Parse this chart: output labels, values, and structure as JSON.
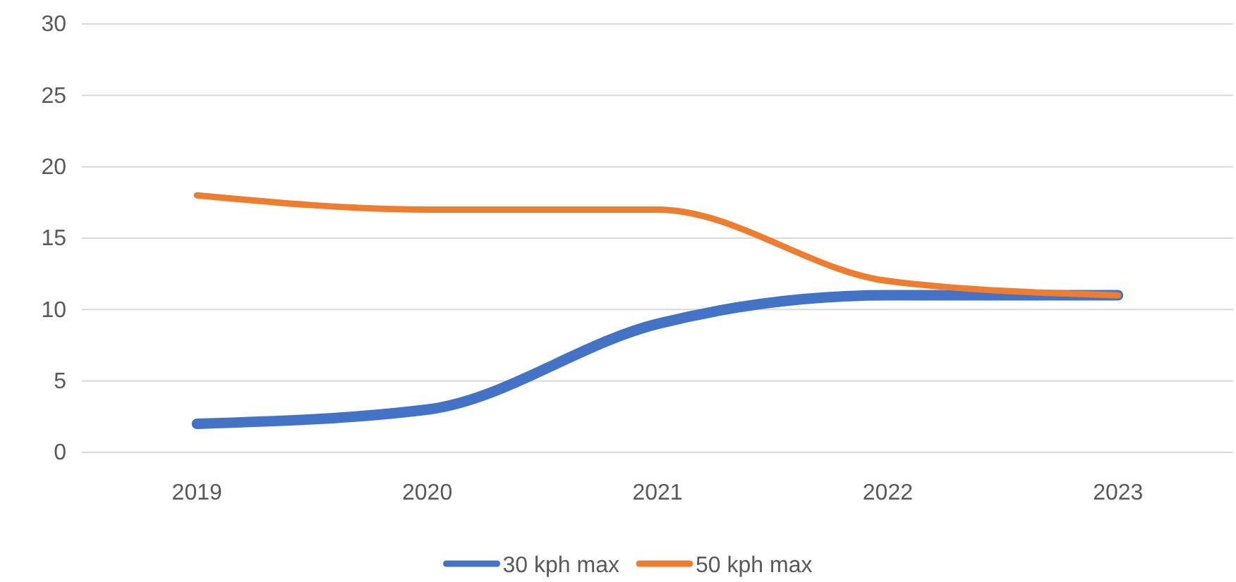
{
  "chart_data": {
    "type": "line",
    "categories": [
      "2019",
      "2020",
      "2021",
      "2022",
      "2023"
    ],
    "series": [
      {
        "name": "30 kph max",
        "color": "#4472c4",
        "values": [
          2,
          3,
          9,
          11,
          11
        ]
      },
      {
        "name": "50 kph max",
        "color": "#ed7d31",
        "values": [
          18,
          17,
          17,
          12,
          11
        ]
      }
    ],
    "ylim": [
      0,
      30
    ],
    "yticks": [
      0,
      5,
      10,
      15,
      20,
      25,
      30
    ],
    "grid": "y",
    "legend": "bottom",
    "marker": "none",
    "line_style": "solid"
  }
}
